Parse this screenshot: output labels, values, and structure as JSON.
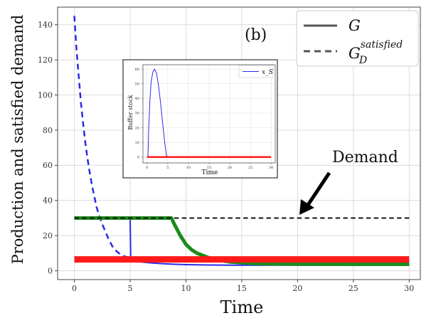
{
  "panel_label": "(b)",
  "annotation": {
    "text": "Demand"
  },
  "legend": {
    "placement": "top-right",
    "entries": [
      {
        "label": "G",
        "style": "solid"
      },
      {
        "label": "G",
        "sub": "D",
        "sup": "satisfied",
        "style": "dashed"
      }
    ]
  },
  "chart_data": [
    {
      "id": "main",
      "type": "line",
      "xlabel": "Time",
      "ylabel": "Production and satisfied demand",
      "xlim": [
        -1.5,
        31
      ],
      "ylim": [
        -5,
        150
      ],
      "xticks": [
        0,
        5,
        10,
        15,
        20,
        25,
        30
      ],
      "yticks": [
        0,
        20,
        40,
        60,
        80,
        100,
        120,
        140
      ],
      "grid": true,
      "series": [
        {
          "name": "G_blue",
          "color": "#2a2ae6",
          "style": "dashed",
          "width": 2.5,
          "points": [
            [
              0,
              145
            ],
            [
              0.2,
              125
            ],
            [
              0.4,
              110
            ],
            [
              0.6,
              95
            ],
            [
              0.8,
              83
            ],
            [
              1.0,
              72
            ],
            [
              1.2,
              63
            ],
            [
              1.4,
              55
            ],
            [
              1.6,
              48
            ],
            [
              1.8,
              42
            ],
            [
              2.0,
              36
            ],
            [
              2.3,
              30
            ],
            [
              2.6,
              25
            ],
            [
              3.0,
              19
            ],
            [
              3.4,
              14
            ],
            [
              3.8,
              11
            ],
            [
              4.2,
              9
            ],
            [
              4.6,
              8
            ],
            [
              5.0,
              7.5
            ]
          ]
        },
        {
          "name": "G_blue",
          "color": "#2a2ae6",
          "style": "solid",
          "width": 2,
          "points": [
            [
              5.0,
              30
            ],
            [
              5.05,
              7
            ],
            [
              5.3,
              6
            ],
            [
              6,
              5
            ],
            [
              7,
              4.4
            ],
            [
              8,
              4
            ],
            [
              9,
              3.7
            ],
            [
              10,
              3.5
            ],
            [
              12,
              3.3
            ],
            [
              14,
              3.2
            ],
            [
              16,
              3.2
            ],
            [
              30,
              3.2
            ]
          ]
        },
        {
          "name": "G_green",
          "color": "#1a8c1a",
          "style": "solid",
          "width": 5,
          "points": [
            [
              0,
              30
            ],
            [
              8.7,
              30
            ],
            [
              9,
              26
            ],
            [
              9.5,
              20
            ],
            [
              10,
              15
            ],
            [
              10.5,
              12
            ],
            [
              11,
              10
            ],
            [
              12,
              7.5
            ],
            [
              13,
              6
            ],
            [
              14,
              5
            ],
            [
              16,
              4.2
            ],
            [
              18,
              3.9
            ],
            [
              20,
              3.8
            ],
            [
              25,
              3.7
            ],
            [
              30,
              3.7
            ]
          ]
        },
        {
          "name": "G_red",
          "color": "#ff1a1a",
          "style": "solid",
          "width": 9,
          "points": [
            [
              0,
              6.5
            ],
            [
              30,
              6.5
            ]
          ]
        },
        {
          "name": "demand",
          "color": "#111111",
          "style": "dashed",
          "width": 2,
          "points": [
            [
              0,
              30
            ],
            [
              30,
              30
            ]
          ]
        }
      ]
    },
    {
      "id": "inset",
      "type": "line",
      "xlabel": "Time",
      "ylabel": "Buffer stock",
      "legend_label": "x_S",
      "xlim": [
        -1,
        31
      ],
      "ylim": [
        -4,
        63
      ],
      "xticks": [
        0,
        5,
        10,
        15,
        20,
        25,
        30
      ],
      "yticks": [
        0,
        10,
        20,
        30,
        40,
        50,
        60
      ],
      "grid": true,
      "series": [
        {
          "name": "x_S",
          "color": "#2a2ae6",
          "style": "solid",
          "width": 1,
          "points": [
            [
              0,
              0
            ],
            [
              0.2,
              0
            ],
            [
              0.4,
              20
            ],
            [
              0.7,
              40
            ],
            [
              1.0,
              52
            ],
            [
              1.4,
              58
            ],
            [
              1.8,
              60
            ],
            [
              2.3,
              57
            ],
            [
              2.8,
              48
            ],
            [
              3.3,
              36
            ],
            [
              3.8,
              22
            ],
            [
              4.3,
              9
            ],
            [
              4.7,
              1
            ],
            [
              5,
              0
            ]
          ]
        },
        {
          "name": "red",
          "color": "#ff1a1a",
          "style": "solid",
          "width": 2.5,
          "points": [
            [
              0,
              0
            ],
            [
              30,
              0
            ]
          ]
        }
      ]
    }
  ]
}
